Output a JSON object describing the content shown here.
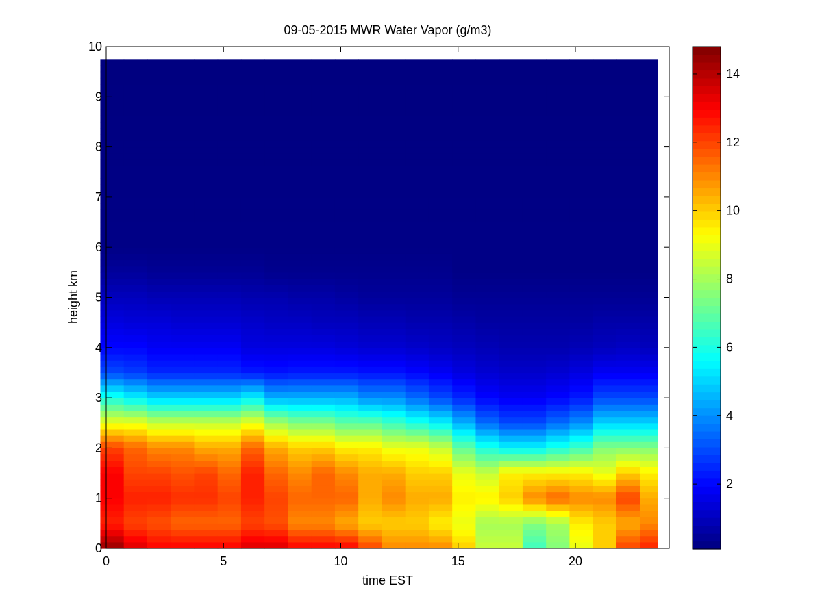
{
  "chart_data": {
    "type": "heatmap",
    "title": "09-05-2015 MWR Water Vapor (g/m3)",
    "xlabel": "time EST",
    "ylabel": "height km",
    "xlim": [
      0,
      24
    ],
    "ylim": [
      0,
      10
    ],
    "x_ticks": [
      0,
      5,
      10,
      15,
      20
    ],
    "y_ticks": [
      0,
      1,
      2,
      3,
      4,
      5,
      6,
      7,
      8,
      9,
      10
    ],
    "x_tick_labels": [
      "0",
      "5",
      "10",
      "15",
      "20"
    ],
    "y_tick_labels": [
      "0",
      "1",
      "2",
      "3",
      "4",
      "5",
      "6",
      "7",
      "8",
      "9",
      "10"
    ],
    "data_extent": {
      "x": [
        0,
        23.5
      ],
      "y": [
        0,
        9.75
      ]
    },
    "colormap": "jet",
    "colorbar": {
      "range": [
        0.1,
        14.8
      ],
      "ticks": [
        2,
        4,
        6,
        8,
        10,
        12,
        14
      ],
      "tick_labels": [
        "2",
        "4",
        "6",
        "8",
        "10",
        "12",
        "14"
      ]
    },
    "time_hours": [
      0.25,
      1.25,
      2.25,
      3.25,
      4.25,
      5.25,
      6.25,
      7.25,
      8.25,
      9.25,
      10.25,
      11.25,
      12.25,
      13.25,
      14.25,
      15.25,
      16.25,
      17.25,
      18.25,
      19.25,
      20.25,
      21.25,
      22.25,
      23.25
    ],
    "profiles": {
      "heights_km": [
        0,
        0.5,
        1.0,
        1.5,
        2.0,
        2.5,
        3.0,
        3.5,
        4.0,
        4.5,
        5.0,
        5.5,
        6.0,
        9.75
      ],
      "values_g_m3": [
        [
          14.5,
          12.5,
          13.0,
          13.0,
          12.0,
          9.0,
          6.0,
          3.0,
          2.0,
          1.5,
          1.0,
          0.5,
          0.2,
          0.1
        ],
        [
          13.5,
          12.0,
          12.5,
          12.0,
          11.5,
          9.0,
          5.5,
          2.8,
          2.0,
          1.4,
          1.0,
          0.5,
          0.2,
          0.1
        ],
        [
          13.0,
          11.8,
          12.5,
          12.0,
          11.0,
          8.5,
          5.0,
          2.5,
          1.8,
          1.4,
          0.9,
          0.4,
          0.2,
          0.1
        ],
        [
          13.0,
          11.5,
          12.3,
          11.8,
          11.0,
          8.5,
          5.0,
          2.5,
          1.8,
          1.3,
          0.9,
          0.4,
          0.2,
          0.1
        ],
        [
          13.0,
          11.5,
          12.3,
          12.0,
          10.5,
          8.5,
          5.0,
          2.5,
          1.8,
          1.3,
          0.9,
          0.4,
          0.2,
          0.1
        ],
        [
          13.0,
          11.5,
          12.0,
          11.5,
          10.5,
          8.5,
          5.0,
          2.5,
          1.8,
          1.3,
          0.9,
          0.4,
          0.2,
          0.1
        ],
        [
          13.5,
          12.0,
          12.5,
          12.5,
          11.5,
          9.0,
          5.5,
          2.3,
          1.5,
          1.2,
          0.8,
          0.4,
          0.2,
          0.1
        ],
        [
          13.5,
          11.8,
          12.0,
          11.5,
          10.5,
          8.0,
          4.5,
          2.2,
          1.5,
          1.1,
          0.8,
          0.3,
          0.2,
          0.1
        ],
        [
          13.0,
          11.0,
          11.5,
          11.0,
          10.0,
          7.5,
          4.5,
          2.3,
          1.5,
          1.1,
          0.7,
          0.3,
          0.2,
          0.1
        ],
        [
          13.0,
          11.0,
          11.5,
          11.5,
          10.0,
          7.5,
          4.5,
          2.3,
          1.5,
          1.0,
          0.7,
          0.3,
          0.2,
          0.1
        ],
        [
          13.0,
          10.5,
          11.5,
          11.0,
          9.5,
          7.0,
          4.5,
          2.3,
          1.4,
          1.0,
          0.6,
          0.3,
          0.2,
          0.1
        ],
        [
          12.0,
          10.0,
          10.5,
          10.5,
          9.5,
          7.0,
          4.0,
          2.2,
          1.3,
          0.9,
          0.5,
          0.3,
          0.2,
          0.1
        ],
        [
          11.0,
          10.0,
          11.0,
          10.5,
          9.0,
          6.5,
          4.0,
          2.2,
          1.3,
          0.9,
          0.5,
          0.3,
          0.2,
          0.1
        ],
        [
          11.0,
          10.0,
          10.5,
          10.0,
          9.0,
          6.0,
          3.5,
          2.0,
          1.2,
          0.8,
          0.5,
          0.3,
          0.2,
          0.1
        ],
        [
          11.0,
          9.5,
          10.5,
          10.0,
          8.5,
          5.5,
          3.0,
          1.8,
          1.1,
          0.8,
          0.5,
          0.3,
          0.2,
          0.1
        ],
        [
          10.0,
          9.0,
          9.5,
          9.0,
          7.0,
          4.5,
          2.5,
          1.5,
          1.0,
          0.7,
          0.4,
          0.2,
          0.2,
          0.1
        ],
        [
          8.5,
          8.0,
          9.5,
          8.5,
          6.0,
          3.5,
          2.0,
          1.3,
          0.9,
          0.6,
          0.4,
          0.2,
          0.2,
          0.1
        ],
        [
          8.5,
          8.0,
          10.0,
          9.5,
          5.5,
          3.0,
          1.8,
          1.2,
          0.8,
          0.6,
          0.4,
          0.2,
          0.2,
          0.1
        ],
        [
          6.5,
          7.5,
          11.0,
          9.5,
          5.5,
          3.0,
          1.8,
          1.2,
          0.8,
          0.6,
          0.4,
          0.2,
          0.2,
          0.1
        ],
        [
          7.5,
          8.0,
          11.5,
          9.5,
          6.0,
          3.5,
          2.0,
          1.3,
          0.8,
          0.6,
          0.4,
          0.2,
          0.2,
          0.1
        ],
        [
          9.0,
          9.5,
          11.0,
          9.5,
          6.5,
          4.0,
          2.3,
          1.5,
          0.9,
          0.6,
          0.4,
          0.2,
          0.2,
          0.1
        ],
        [
          10.0,
          10.0,
          11.0,
          9.0,
          7.5,
          5.0,
          3.0,
          1.8,
          1.0,
          0.7,
          0.4,
          0.2,
          0.2,
          0.1
        ],
        [
          12.0,
          10.5,
          12.0,
          10.0,
          7.5,
          5.0,
          3.0,
          1.8,
          1.1,
          0.7,
          0.4,
          0.2,
          0.2,
          0.1
        ],
        [
          12.5,
          11.0,
          10.5,
          9.5,
          7.5,
          5.0,
          3.0,
          1.8,
          1.0,
          0.7,
          0.4,
          0.2,
          0.2,
          0.1
        ]
      ]
    }
  }
}
